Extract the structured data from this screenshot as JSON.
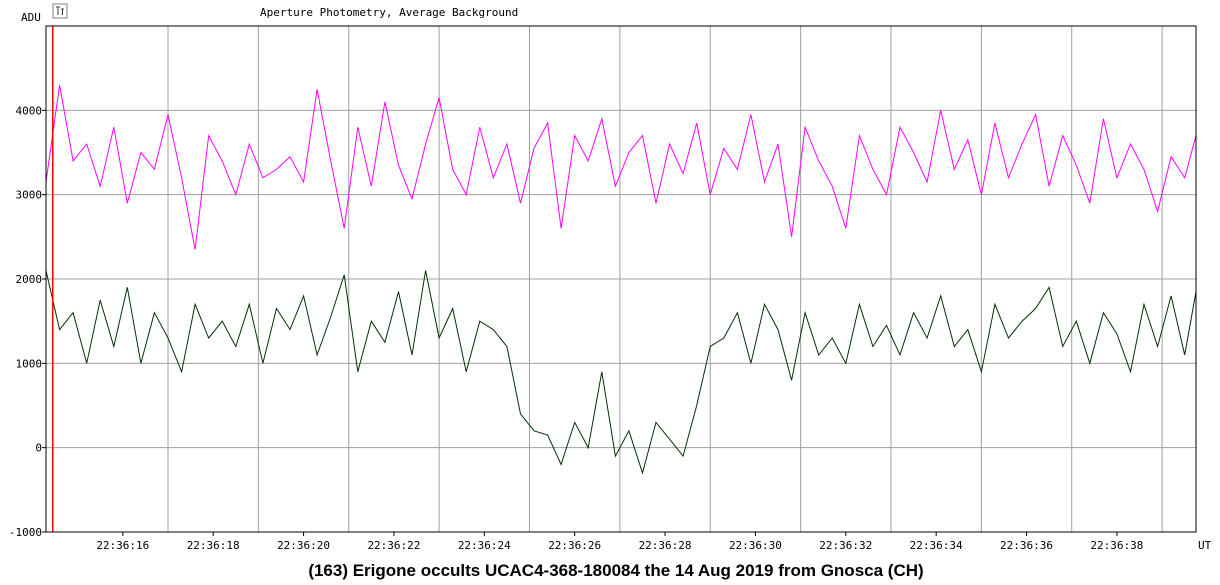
{
  "chart_data": {
    "type": "line",
    "title": "Aperture Photometry, Average Background",
    "caption": "(163) Erigone occults UCAC4-368-180084 the 14 Aug 2019 from Gnosca (CH)",
    "ylabel": "ADU",
    "xlabel": "UT",
    "ylim": [
      -1000,
      5000
    ],
    "xlim": [
      14.3,
      39.75
    ],
    "grid": true,
    "y_ticks": [
      {
        "value": -1000,
        "label": "-1000"
      },
      {
        "value": 0,
        "label": "0"
      },
      {
        "value": 1000,
        "label": "1000"
      },
      {
        "value": 2000,
        "label": "2000"
      },
      {
        "value": 3000,
        "label": "3000"
      },
      {
        "value": 4000,
        "label": "4000"
      }
    ],
    "x_ticks": [
      {
        "value": 16,
        "label": "22:36:16"
      },
      {
        "value": 18,
        "label": "22:36:18"
      },
      {
        "value": 20,
        "label": "22:36:20"
      },
      {
        "value": 22,
        "label": "22:36:22"
      },
      {
        "value": 24,
        "label": "22:36:24"
      },
      {
        "value": 26,
        "label": "22:36:26"
      },
      {
        "value": 28,
        "label": "22:36:28"
      },
      {
        "value": 30,
        "label": "22:36:30"
      },
      {
        "value": 32,
        "label": "22:36:32"
      },
      {
        "value": 34,
        "label": "22:36:34"
      },
      {
        "value": 36,
        "label": "22:36:36"
      },
      {
        "value": 38,
        "label": "22:36:38"
      }
    ],
    "x_minor_gridlines": [
      17,
      19,
      21,
      23,
      25,
      27,
      29,
      31,
      33,
      35,
      37,
      39
    ],
    "marker_x": 14.45,
    "series": [
      {
        "color": "#ff00ff",
        "x": [
          14.3,
          14.6,
          14.9,
          15.2,
          15.5,
          15.8,
          16.1,
          16.4,
          16.7,
          17.0,
          17.3,
          17.6,
          17.9,
          18.2,
          18.5,
          18.8,
          19.1,
          19.4,
          19.7,
          20.0,
          20.3,
          20.6,
          20.9,
          21.2,
          21.5,
          21.8,
          22.1,
          22.4,
          22.7,
          23.0,
          23.3,
          23.6,
          23.9,
          24.2,
          24.5,
          24.8,
          25.1,
          25.4,
          25.7,
          26.0,
          26.3,
          26.6,
          26.9,
          27.2,
          27.5,
          27.8,
          28.1,
          28.4,
          28.7,
          29.0,
          29.3,
          29.6,
          29.9,
          30.2,
          30.5,
          30.8,
          31.1,
          31.4,
          31.7,
          32.0,
          32.3,
          32.6,
          32.9,
          33.2,
          33.5,
          33.8,
          34.1,
          34.4,
          34.7,
          35.0,
          35.3,
          35.6,
          35.9,
          36.2,
          36.5,
          36.8,
          37.1,
          37.4,
          37.7,
          38.0,
          38.3,
          38.6,
          38.9,
          39.2,
          39.5,
          39.75
        ],
        "y": [
          3150,
          4300,
          3400,
          3600,
          3100,
          3800,
          2900,
          3500,
          3300,
          3950,
          3200,
          2350,
          3700,
          3400,
          3000,
          3600,
          3200,
          3300,
          3450,
          3150,
          4250,
          3400,
          2600,
          3800,
          3100,
          4100,
          3350,
          2950,
          3600,
          4150,
          3300,
          3000,
          3800,
          3200,
          3600,
          2900,
          3550,
          3850,
          2600,
          3700,
          3400,
          3900,
          3100,
          3500,
          3700,
          2900,
          3600,
          3250,
          3850,
          3000,
          3550,
          3300,
          3950,
          3150,
          3600,
          2500,
          3800,
          3400,
          3100,
          2600,
          3700,
          3300,
          3000,
          3800,
          3500,
          3150,
          4000,
          3300,
          3650,
          3000,
          3850,
          3200,
          3600,
          3950,
          3100,
          3700,
          3350,
          2900,
          3900,
          3200,
          3600,
          3300,
          2800,
          3450,
          3200,
          3700
        ]
      },
      {
        "color": "#003300",
        "x": [
          14.3,
          14.6,
          14.9,
          15.2,
          15.5,
          15.8,
          16.1,
          16.4,
          16.7,
          17.0,
          17.3,
          17.6,
          17.9,
          18.2,
          18.5,
          18.8,
          19.1,
          19.4,
          19.7,
          20.0,
          20.3,
          20.6,
          20.9,
          21.2,
          21.5,
          21.8,
          22.1,
          22.4,
          22.7,
          23.0,
          23.3,
          23.6,
          23.9,
          24.2,
          24.5,
          24.8,
          25.1,
          25.4,
          25.7,
          26.0,
          26.3,
          26.6,
          26.9,
          27.2,
          27.5,
          27.8,
          28.1,
          28.4,
          28.7,
          29.0,
          29.3,
          29.6,
          29.9,
          30.2,
          30.5,
          30.8,
          31.1,
          31.4,
          31.7,
          32.0,
          32.3,
          32.6,
          32.9,
          33.2,
          33.5,
          33.8,
          34.1,
          34.4,
          34.7,
          35.0,
          35.3,
          35.6,
          35.9,
          36.2,
          36.5,
          36.8,
          37.1,
          37.4,
          37.7,
          38.0,
          38.3,
          38.6,
          38.9,
          39.2,
          39.5,
          39.75
        ],
        "y": [
          2100,
          1400,
          1600,
          1000,
          1750,
          1200,
          1900,
          1000,
          1600,
          1300,
          900,
          1700,
          1300,
          1500,
          1200,
          1700,
          1000,
          1650,
          1400,
          1800,
          1100,
          1550,
          2050,
          900,
          1500,
          1250,
          1850,
          1100,
          2100,
          1300,
          1650,
          900,
          1500,
          1400,
          1200,
          400,
          200,
          150,
          -200,
          300,
          0,
          900,
          -100,
          200,
          -300,
          300,
          100,
          -100,
          500,
          1200,
          1300,
          1600,
          1000,
          1700,
          1400,
          800,
          1600,
          1100,
          1300,
          1000,
          1700,
          1200,
          1450,
          1100,
          1600,
          1300,
          1800,
          1200,
          1400,
          900,
          1700,
          1300,
          1500,
          1650,
          1900,
          1200,
          1500,
          1000,
          1600,
          1350,
          900,
          1700,
          1200,
          1800,
          1100,
          1850
        ]
      }
    ]
  }
}
